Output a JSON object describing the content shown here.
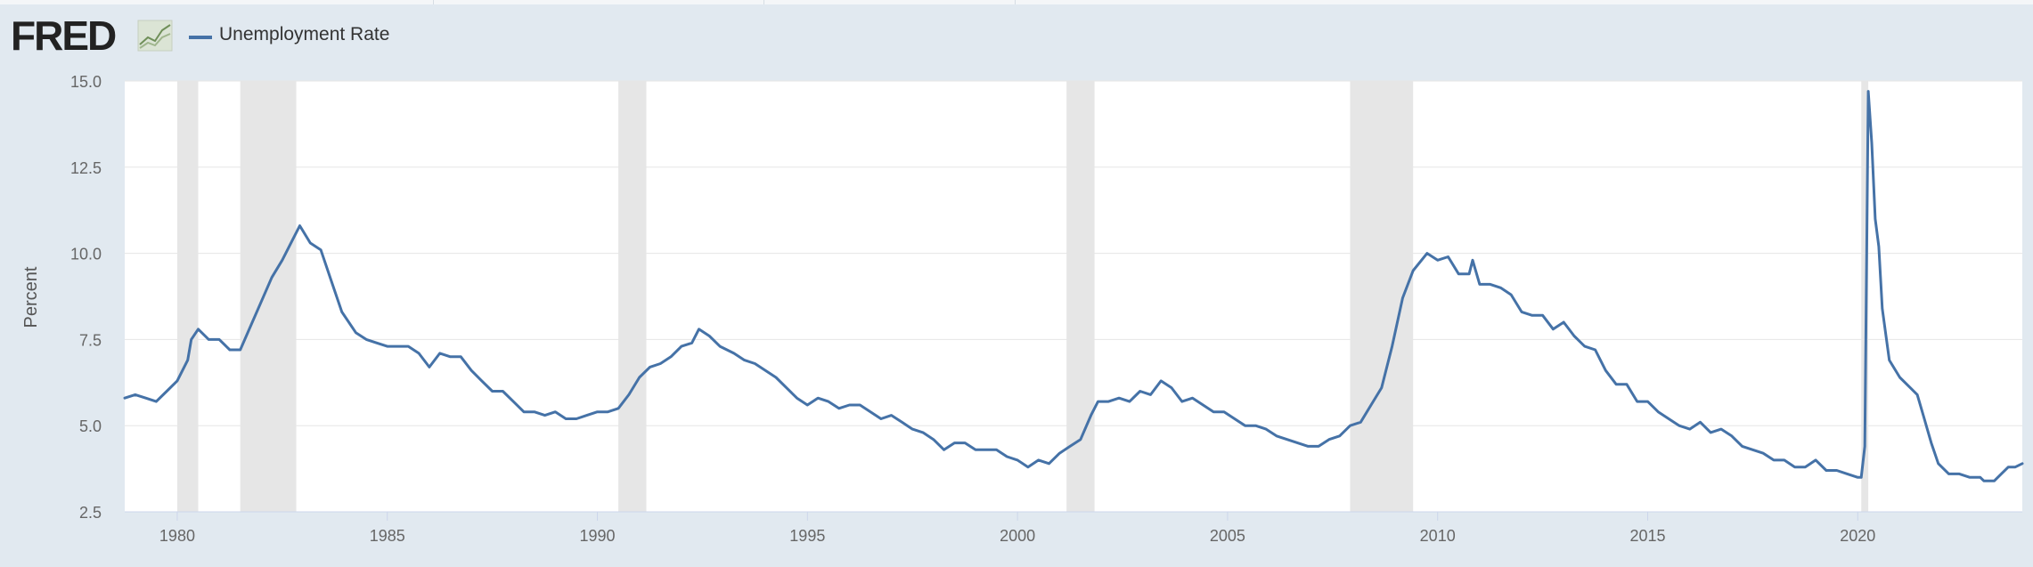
{
  "header": {
    "logo_text": "FRED",
    "logo_icon": "line-chart-icon",
    "legend_label": "Unemployment Rate",
    "series_color": "#4572a7"
  },
  "chart_data": {
    "type": "line",
    "ylabel": "Percent",
    "xlabel": "",
    "ylim": [
      2.5,
      15.0
    ],
    "y_ticks": [
      "15.0",
      "12.5",
      "10.0",
      "7.5",
      "5.0",
      "2.5"
    ],
    "x_ticks": [
      "1980",
      "1985",
      "1990",
      "1995",
      "2000",
      "2005",
      "2010",
      "2015",
      "2020"
    ],
    "x_range": [
      "1978-10",
      "2023-12"
    ],
    "grid": true,
    "recessions": [
      [
        "1980-01",
        "1980-07"
      ],
      [
        "1981-07",
        "1982-11"
      ],
      [
        "1990-07",
        "1991-03"
      ],
      [
        "2001-03",
        "2001-11"
      ],
      [
        "2007-12",
        "2009-06"
      ],
      [
        "2020-02",
        "2020-04"
      ]
    ],
    "series": [
      {
        "name": "Unemployment Rate",
        "color": "#4572a7",
        "points": [
          [
            "1978-10",
            5.8
          ],
          [
            "1979-01",
            5.9
          ],
          [
            "1979-04",
            5.8
          ],
          [
            "1979-07",
            5.7
          ],
          [
            "1979-10",
            6.0
          ],
          [
            "1980-01",
            6.3
          ],
          [
            "1980-04",
            6.9
          ],
          [
            "1980-05",
            7.5
          ],
          [
            "1980-07",
            7.8
          ],
          [
            "1980-10",
            7.5
          ],
          [
            "1981-01",
            7.5
          ],
          [
            "1981-04",
            7.2
          ],
          [
            "1981-07",
            7.2
          ],
          [
            "1981-10",
            7.9
          ],
          [
            "1982-01",
            8.6
          ],
          [
            "1982-04",
            9.3
          ],
          [
            "1982-07",
            9.8
          ],
          [
            "1982-10",
            10.4
          ],
          [
            "1982-12",
            10.8
          ],
          [
            "1983-03",
            10.3
          ],
          [
            "1983-06",
            10.1
          ],
          [
            "1983-09",
            9.2
          ],
          [
            "1983-12",
            8.3
          ],
          [
            "1984-04",
            7.7
          ],
          [
            "1984-07",
            7.5
          ],
          [
            "1984-10",
            7.4
          ],
          [
            "1985-01",
            7.3
          ],
          [
            "1985-04",
            7.3
          ],
          [
            "1985-07",
            7.3
          ],
          [
            "1985-10",
            7.1
          ],
          [
            "1986-01",
            6.7
          ],
          [
            "1986-04",
            7.1
          ],
          [
            "1986-07",
            7.0
          ],
          [
            "1986-10",
            7.0
          ],
          [
            "1987-01",
            6.6
          ],
          [
            "1987-04",
            6.3
          ],
          [
            "1987-07",
            6.0
          ],
          [
            "1987-10",
            6.0
          ],
          [
            "1988-01",
            5.7
          ],
          [
            "1988-04",
            5.4
          ],
          [
            "1988-07",
            5.4
          ],
          [
            "1988-10",
            5.3
          ],
          [
            "1989-01",
            5.4
          ],
          [
            "1989-04",
            5.2
          ],
          [
            "1989-07",
            5.2
          ],
          [
            "1989-10",
            5.3
          ],
          [
            "1990-01",
            5.4
          ],
          [
            "1990-04",
            5.4
          ],
          [
            "1990-07",
            5.5
          ],
          [
            "1990-10",
            5.9
          ],
          [
            "1991-01",
            6.4
          ],
          [
            "1991-04",
            6.7
          ],
          [
            "1991-07",
            6.8
          ],
          [
            "1991-10",
            7.0
          ],
          [
            "1992-01",
            7.3
          ],
          [
            "1992-04",
            7.4
          ],
          [
            "1992-06",
            7.8
          ],
          [
            "1992-09",
            7.6
          ],
          [
            "1992-12",
            7.3
          ],
          [
            "1993-04",
            7.1
          ],
          [
            "1993-07",
            6.9
          ],
          [
            "1993-10",
            6.8
          ],
          [
            "1994-01",
            6.6
          ],
          [
            "1994-04",
            6.4
          ],
          [
            "1994-07",
            6.1
          ],
          [
            "1994-10",
            5.8
          ],
          [
            "1995-01",
            5.6
          ],
          [
            "1995-04",
            5.8
          ],
          [
            "1995-07",
            5.7
          ],
          [
            "1995-10",
            5.5
          ],
          [
            "1996-01",
            5.6
          ],
          [
            "1996-04",
            5.6
          ],
          [
            "1996-07",
            5.4
          ],
          [
            "1996-10",
            5.2
          ],
          [
            "1997-01",
            5.3
          ],
          [
            "1997-04",
            5.1
          ],
          [
            "1997-07",
            4.9
          ],
          [
            "1997-10",
            4.8
          ],
          [
            "1998-01",
            4.6
          ],
          [
            "1998-04",
            4.3
          ],
          [
            "1998-07",
            4.5
          ],
          [
            "1998-10",
            4.5
          ],
          [
            "1999-01",
            4.3
          ],
          [
            "1999-04",
            4.3
          ],
          [
            "1999-07",
            4.3
          ],
          [
            "1999-10",
            4.1
          ],
          [
            "2000-01",
            4.0
          ],
          [
            "2000-04",
            3.8
          ],
          [
            "2000-07",
            4.0
          ],
          [
            "2000-10",
            3.9
          ],
          [
            "2001-01",
            4.2
          ],
          [
            "2001-04",
            4.4
          ],
          [
            "2001-07",
            4.6
          ],
          [
            "2001-10",
            5.3
          ],
          [
            "2001-12",
            5.7
          ],
          [
            "2002-03",
            5.7
          ],
          [
            "2002-06",
            5.8
          ],
          [
            "2002-09",
            5.7
          ],
          [
            "2002-12",
            6.0
          ],
          [
            "2003-03",
            5.9
          ],
          [
            "2003-06",
            6.3
          ],
          [
            "2003-09",
            6.1
          ],
          [
            "2003-12",
            5.7
          ],
          [
            "2004-03",
            5.8
          ],
          [
            "2004-06",
            5.6
          ],
          [
            "2004-09",
            5.4
          ],
          [
            "2004-12",
            5.4
          ],
          [
            "2005-03",
            5.2
          ],
          [
            "2005-06",
            5.0
          ],
          [
            "2005-09",
            5.0
          ],
          [
            "2005-12",
            4.9
          ],
          [
            "2006-03",
            4.7
          ],
          [
            "2006-06",
            4.6
          ],
          [
            "2006-09",
            4.5
          ],
          [
            "2006-12",
            4.4
          ],
          [
            "2007-03",
            4.4
          ],
          [
            "2007-06",
            4.6
          ],
          [
            "2007-09",
            4.7
          ],
          [
            "2007-12",
            5.0
          ],
          [
            "2008-03",
            5.1
          ],
          [
            "2008-06",
            5.6
          ],
          [
            "2008-09",
            6.1
          ],
          [
            "2008-12",
            7.3
          ],
          [
            "2009-03",
            8.7
          ],
          [
            "2009-06",
            9.5
          ],
          [
            "2009-10",
            10.0
          ],
          [
            "2010-01",
            9.8
          ],
          [
            "2010-04",
            9.9
          ],
          [
            "2010-07",
            9.4
          ],
          [
            "2010-10",
            9.4
          ],
          [
            "2010-11",
            9.8
          ],
          [
            "2011-01",
            9.1
          ],
          [
            "2011-04",
            9.1
          ],
          [
            "2011-07",
            9.0
          ],
          [
            "2011-10",
            8.8
          ],
          [
            "2012-01",
            8.3
          ],
          [
            "2012-04",
            8.2
          ],
          [
            "2012-07",
            8.2
          ],
          [
            "2012-10",
            7.8
          ],
          [
            "2013-01",
            8.0
          ],
          [
            "2013-04",
            7.6
          ],
          [
            "2013-07",
            7.3
          ],
          [
            "2013-10",
            7.2
          ],
          [
            "2014-01",
            6.6
          ],
          [
            "2014-04",
            6.2
          ],
          [
            "2014-07",
            6.2
          ],
          [
            "2014-10",
            5.7
          ],
          [
            "2015-01",
            5.7
          ],
          [
            "2015-04",
            5.4
          ],
          [
            "2015-07",
            5.2
          ],
          [
            "2015-10",
            5.0
          ],
          [
            "2016-01",
            4.9
          ],
          [
            "2016-04",
            5.1
          ],
          [
            "2016-07",
            4.8
          ],
          [
            "2016-10",
            4.9
          ],
          [
            "2017-01",
            4.7
          ],
          [
            "2017-04",
            4.4
          ],
          [
            "2017-07",
            4.3
          ],
          [
            "2017-10",
            4.2
          ],
          [
            "2018-01",
            4.0
          ],
          [
            "2018-04",
            4.0
          ],
          [
            "2018-07",
            3.8
          ],
          [
            "2018-10",
            3.8
          ],
          [
            "2019-01",
            4.0
          ],
          [
            "2019-04",
            3.7
          ],
          [
            "2019-07",
            3.7
          ],
          [
            "2019-10",
            3.6
          ],
          [
            "2020-01",
            3.5
          ],
          [
            "2020-02",
            3.5
          ],
          [
            "2020-03",
            4.4
          ],
          [
            "2020-04",
            14.7
          ],
          [
            "2020-05",
            13.2
          ],
          [
            "2020-06",
            11.0
          ],
          [
            "2020-07",
            10.2
          ],
          [
            "2020-08",
            8.4
          ],
          [
            "2020-10",
            6.9
          ],
          [
            "2021-01",
            6.4
          ],
          [
            "2021-04",
            6.1
          ],
          [
            "2021-06",
            5.9
          ],
          [
            "2021-08",
            5.2
          ],
          [
            "2021-10",
            4.5
          ],
          [
            "2021-12",
            3.9
          ],
          [
            "2022-03",
            3.6
          ],
          [
            "2022-06",
            3.6
          ],
          [
            "2022-09",
            3.5
          ],
          [
            "2022-12",
            3.5
          ],
          [
            "2023-01",
            3.4
          ],
          [
            "2023-04",
            3.4
          ],
          [
            "2023-06",
            3.6
          ],
          [
            "2023-08",
            3.8
          ],
          [
            "2023-10",
            3.8
          ],
          [
            "2023-12",
            3.9
          ]
        ]
      }
    ]
  }
}
